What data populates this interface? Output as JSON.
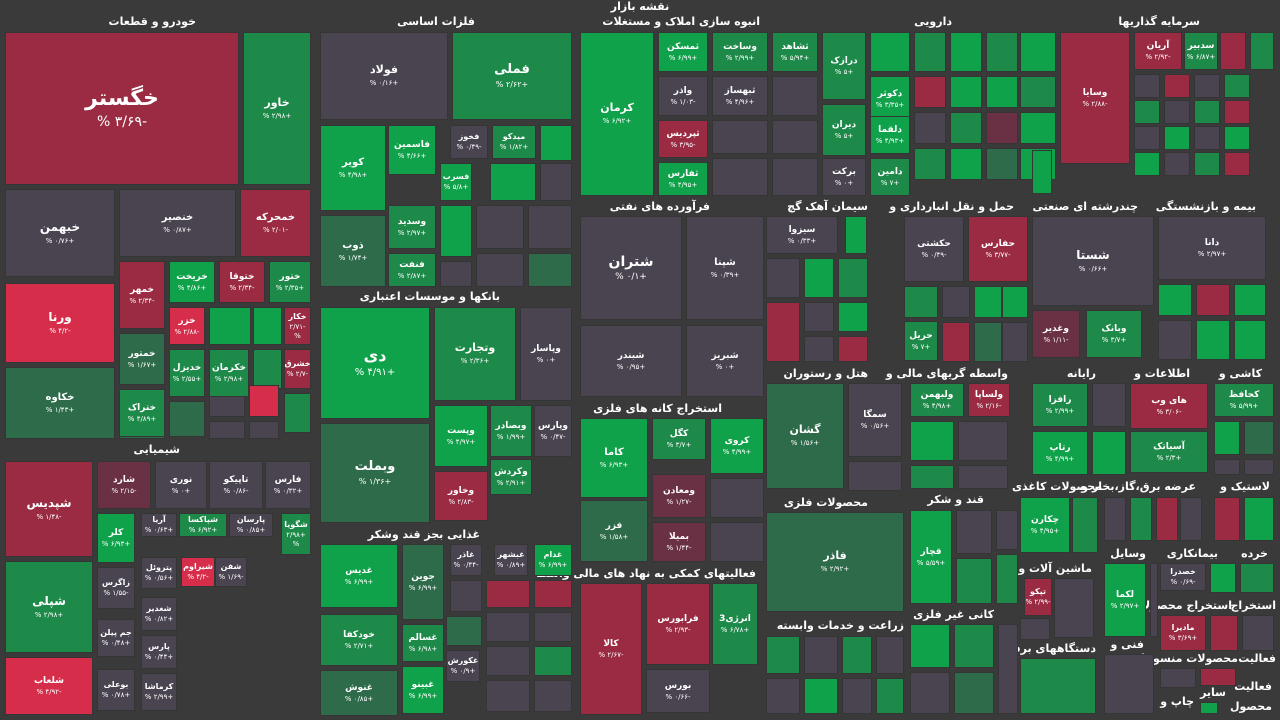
{
  "header": {
    "title": "نقشه بازار"
  },
  "colors": {
    "background": "#3a3a3a",
    "strong_green": "#0fa24a",
    "green": "#1e8a4a",
    "weak_green": "#2e6b4b",
    "strong_red": "#d62e4a",
    "red": "#9a2b43",
    "weak_red": "#6a3144",
    "neutral": "#4a4450"
  },
  "sections": [
    {
      "title": "خودرو و قطعات"
    },
    {
      "title": "فلزات اساسی"
    },
    {
      "title": "انبوه سازی املاک و مستغلات"
    },
    {
      "title": "دارویی"
    },
    {
      "title": "سرمایه گذاریها"
    },
    {
      "title": "شیمیایی"
    },
    {
      "title": "بانکها و موسسات اعتباری"
    },
    {
      "title": "فرآورده های نفتی"
    },
    {
      "title": "سیمان آهک گچ"
    },
    {
      "title": "حمل و نقل انبارداری و"
    },
    {
      "title": "چندرشته ای صنعتی"
    },
    {
      "title": "بیمه و بازنشستگی"
    },
    {
      "title": "استخراج کانه های فلزی"
    },
    {
      "title": "هتل و رستوران"
    },
    {
      "title": "واسطه گریهای مالی و"
    },
    {
      "title": "رایانه"
    },
    {
      "title": "اطلاعات و"
    },
    {
      "title": "کاشی و"
    },
    {
      "title": "غذایی بجز قند وشکر"
    },
    {
      "title": "فعالیتهای کمکی به نهاد های مالی واسط"
    },
    {
      "title": "محصولات فلزی"
    },
    {
      "title": "قند و شکر"
    },
    {
      "title": "محصولات کاغذی"
    },
    {
      "title": "عرضه برق،گاز،بخار و"
    },
    {
      "title": "لاستیک و"
    },
    {
      "title": "ماشین آلات و"
    },
    {
      "title": "وسایل"
    },
    {
      "title": "بیمانکاری"
    },
    {
      "title": "خرده"
    },
    {
      "title": "زراعت و خدمات وابسته"
    },
    {
      "title": "کانی غیر فلزی"
    },
    {
      "title": "فنی و"
    },
    {
      "title": "دستگاههای برقی"
    },
    {
      "title": "استخراج محصولات"
    },
    {
      "title": "استخراج"
    },
    {
      "title": "فعالیت"
    },
    {
      "title": "محصولات منسوجات"
    },
    {
      "title": "فعالیت"
    },
    {
      "title": "سایر"
    },
    {
      "title": "چاپ و"
    },
    {
      "title": "محصول"
    }
  ],
  "tiles": [
    {
      "name": "خگستر",
      "change": "-۳/۶۹ %"
    },
    {
      "name": "خاور",
      "change": "+۲/۹۸ %"
    },
    {
      "name": "خبهمن",
      "change": "+۰/۷۶ %"
    },
    {
      "name": "خنصیر",
      "change": "+۰/۸۷ %"
    },
    {
      "name": "خمحرکه",
      "change": "-۲/۰۱ %"
    },
    {
      "name": "ورنا",
      "change": "-۴/۲ %"
    },
    {
      "name": "خمهر",
      "change": "-۲/۳۴ %"
    },
    {
      "name": "خریخت",
      "change": "+۴/۸۶ %"
    },
    {
      "name": "ختوقا",
      "change": "-۲/۳۴ %"
    },
    {
      "name": "ختور",
      "change": "+۲/۳۵ %"
    },
    {
      "name": "خزر",
      "change": "-۲/۸۸ %"
    },
    {
      "name": "خکار",
      "change": "-۲/۷۱ %"
    },
    {
      "name": "خمتور",
      "change": "+۱/۶۷ %"
    },
    {
      "name": "خدیزل",
      "change": "+۲/۵۵ %"
    },
    {
      "name": "خکرمان",
      "change": "+۲/۹۸ %"
    },
    {
      "name": "خشرق",
      "change": "-۲/۷ %"
    },
    {
      "name": "خکاوه",
      "change": "+۱/۴۳ %"
    },
    {
      "name": "ختراک",
      "change": "+۴/۸۹ %"
    },
    {
      "name": "فولاد",
      "change": "+۰/۱۶ %"
    },
    {
      "name": "فملی",
      "change": "+۲/۶۲ %"
    },
    {
      "name": "کویر",
      "change": "+۴/۹۸ %"
    },
    {
      "name": "فاسمین",
      "change": "+۴/۶۶ %"
    },
    {
      "name": "فخوز",
      "change": "-۰/۴۹ %"
    },
    {
      "name": "میدکو",
      "change": "+۱/۸۲ %"
    },
    {
      "name": "فسرب",
      "change": "+۵/۸ %"
    },
    {
      "name": "ذوب",
      "change": "+۱/۷۴ %"
    },
    {
      "name": "وسدید",
      "change": "+۲/۹۷ %"
    },
    {
      "name": "فنفت",
      "change": "+۲/۸۷ %"
    },
    {
      "name": "کرمان",
      "change": "+۶/۹۲ %"
    },
    {
      "name": "ثمسکن",
      "change": "+۶/۹۹ %"
    },
    {
      "name": "وساخت",
      "change": "+۲/۹۹ %"
    },
    {
      "name": "ثشاهد",
      "change": "+۵/۹۴ %"
    },
    {
      "name": "واذر",
      "change": "-۱/۰۳ %"
    },
    {
      "name": "ثبهساز",
      "change": "+۴/۹۶ %"
    },
    {
      "name": "ثپردیس",
      "change": "-۳/۹۵ %"
    },
    {
      "name": "ثفارس",
      "change": "+۴/۹۵ %"
    },
    {
      "name": "درازک",
      "change": "+۵ %"
    },
    {
      "name": "دکوثر",
      "change": "+۳/۳۵ %"
    },
    {
      "name": "دیران",
      "change": "+۵ %"
    },
    {
      "name": "دلقما",
      "change": "+۴/۹۳ %"
    },
    {
      "name": "برکت",
      "change": "+۰ %"
    },
    {
      "name": "دامین",
      "change": "+۷ %"
    },
    {
      "name": "آریان",
      "change": "-۲/۹۲ %"
    },
    {
      "name": "سدبیر",
      "change": "+۶/۸۷ %"
    },
    {
      "name": "وسایا",
      "change": "-۲/۸۸ %"
    },
    {
      "name": "شپدیس",
      "change": "-۱/۴۸ %"
    },
    {
      "name": "شلعاب",
      "change": "-۴/۹۲ %"
    },
    {
      "name": "شپلی",
      "change": "+۲/۹۸ %"
    },
    {
      "name": "شارد",
      "change": "-۲/۱۵ %"
    },
    {
      "name": "نوری",
      "change": "+۰ %"
    },
    {
      "name": "تاپیکو",
      "change": "-۰/۸۶ %"
    },
    {
      "name": "فارس",
      "change": "+۰/۳۲ %"
    },
    {
      "name": "کلر",
      "change": "+۶/۹۳ %"
    },
    {
      "name": "آریا",
      "change": "+۰/۶۳ %"
    },
    {
      "name": "شپاکسا",
      "change": "+۶/۹۲ %"
    },
    {
      "name": "پارسان",
      "change": "+۰/۸۵ %"
    },
    {
      "name": "شگویا",
      "change": "+۲/۹۸ %"
    },
    {
      "name": "پتروئل",
      "change": "+۰/۵۶ %"
    },
    {
      "name": "شیراوم",
      "change": "-۴/۲ %"
    },
    {
      "name": "شفن",
      "change": "-۱/۶۹ %"
    },
    {
      "name": "زاگرس",
      "change": "-۱/۵۵ %"
    },
    {
      "name": "شغدیر",
      "change": "+۰/۸۲ %"
    },
    {
      "name": "جم پیلن",
      "change": "+۰/۴۸ %"
    },
    {
      "name": "پارس",
      "change": "+۰/۴۴ %"
    },
    {
      "name": "بوعلی",
      "change": "+۰/۷۸ %"
    },
    {
      "name": "کرماشا",
      "change": "+۲/۹۹ %"
    },
    {
      "name": "دی",
      "change": "+۴/۹۱ %"
    },
    {
      "name": "وتجارت",
      "change": "+۲/۳۶ %"
    },
    {
      "name": "وپاسار",
      "change": "+۰ %"
    },
    {
      "name": "وبملت",
      "change": "+۱/۳۶ %"
    },
    {
      "name": "وپست",
      "change": "+۴/۹۷ %"
    },
    {
      "name": "وبصادر",
      "change": "+۱/۹۹ %"
    },
    {
      "name": "وپارس",
      "change": "-۰/۴۷ %"
    },
    {
      "name": "وکردش",
      "change": "+۲/۹۱ %"
    },
    {
      "name": "وخاور",
      "change": "-۲/۸۳ %"
    },
    {
      "name": "شتران",
      "change": "+۰/۱ %"
    },
    {
      "name": "شپنا",
      "change": "+۰/۳۹ %"
    },
    {
      "name": "شبندر",
      "change": "+۰/۹۵ %"
    },
    {
      "name": "شبریز",
      "change": "+۰ %"
    },
    {
      "name": "سیزوا",
      "change": "+۰/۳۳ %"
    },
    {
      "name": "حکشتی",
      "change": "-۰/۴۹ %"
    },
    {
      "name": "حفارس",
      "change": "-۳/۷۷ %"
    },
    {
      "name": "حریل",
      "change": "+۷ %"
    },
    {
      "name": "شستا",
      "change": "+۰/۶۶ %"
    },
    {
      "name": "دانا",
      "change": "+۲/۹۷ %"
    },
    {
      "name": "وغدیر",
      "change": "-۱/۱۱ %"
    },
    {
      "name": "وبانک",
      "change": "+۳/۷ %"
    },
    {
      "name": "کاما",
      "change": "+۶/۹۳ %"
    },
    {
      "name": "کگل",
      "change": "+۳/۷ %"
    },
    {
      "name": "کروی",
      "change": "+۴/۹۹ %"
    },
    {
      "name": "ومعادن",
      "change": "-۱/۲۷ %"
    },
    {
      "name": "فزر",
      "change": "+۱/۵۸ %"
    },
    {
      "name": "بمیلا",
      "change": "-۱/۴۴ %"
    },
    {
      "name": "گشان",
      "change": "+۱/۵۶ %"
    },
    {
      "name": "سمگا",
      "change": "+۰/۵۶ %"
    },
    {
      "name": "ولبهمن",
      "change": "+۴/۹۸ %"
    },
    {
      "name": "ولساپا",
      "change": "-۲/۱۶ %"
    },
    {
      "name": "رافزا",
      "change": "+۲/۹۹ %"
    },
    {
      "name": "رتاپ",
      "change": "+۴/۹۹ %"
    },
    {
      "name": "های وب",
      "change": "-۳/۰۶ %"
    },
    {
      "name": "آسیاتک",
      "change": "+۲/۳ %"
    },
    {
      "name": "کحافظ",
      "change": "+۵/۹۹ %"
    },
    {
      "name": "غدیس",
      "change": "+۶/۹۹ %"
    },
    {
      "name": "جوین",
      "change": "+۶/۹۹ %"
    },
    {
      "name": "غاذر",
      "change": "-۰/۴۴ %"
    },
    {
      "name": "غبشهر",
      "change": "+۰/۸۹ %"
    },
    {
      "name": "غدام",
      "change": "+۶/۹۹ %"
    },
    {
      "name": "خودکفا",
      "change": "+۲/۷۱ %"
    },
    {
      "name": "غسالم",
      "change": "+۶/۹۸ %"
    },
    {
      "name": "غکورش",
      "change": "+۰/۹ %"
    },
    {
      "name": "غنوش",
      "change": "+۰/۸۵ %"
    },
    {
      "name": "غبینو",
      "change": "+۶/۹۹ %"
    },
    {
      "name": "کالا",
      "change": "-۲/۶۷ %"
    },
    {
      "name": "فرابورس",
      "change": "-۲/۹۳ %"
    },
    {
      "name": "انرژی3",
      "change": "+۶/۷۸ %"
    },
    {
      "name": "بورس",
      "change": "-۰/۶۶ %"
    },
    {
      "name": "فاذر",
      "change": "+۲/۹۲ %"
    },
    {
      "name": "قچار",
      "change": "+۵/۵۹ %"
    },
    {
      "name": "چکارن",
      "change": "+۴/۹۵ %"
    },
    {
      "name": "لکما",
      "change": "+۲/۹۷ %"
    },
    {
      "name": "تپکو",
      "change": "-۲/۹۹ %"
    },
    {
      "name": "خصدرا",
      "change": "-۰/۶۹ %"
    },
    {
      "name": "مادیرا",
      "change": "+۳/۶۹ %"
    }
  ]
}
